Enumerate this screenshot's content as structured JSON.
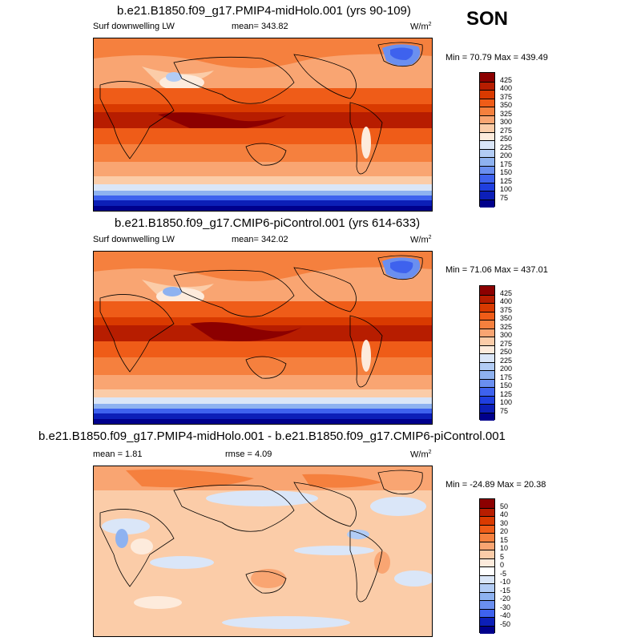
{
  "season": "SON",
  "panels": [
    {
      "title": "b.e21.B1850.f09_g17.PMIP4-midHolo.001 (yrs 90-109)",
      "left_label": "Surf downwelling LW",
      "center_label": "mean= 343.82",
      "units": "W/m",
      "units_sup": "2",
      "minmax": "Min =  70.79 Max = 439.49",
      "colorbar": {
        "labels": [
          "425",
          "400",
          "375",
          "350",
          "325",
          "300",
          "275",
          "250",
          "225",
          "200",
          "175",
          "150",
          "125",
          "100",
          "75"
        ],
        "colors": [
          "#8c0000",
          "#b71d00",
          "#d93a00",
          "#ef5c18",
          "#f5803e",
          "#f9a572",
          "#fbcca8",
          "#fdebdc",
          "#dae6f8",
          "#b2ccf5",
          "#8eb2f0",
          "#6a8ff0",
          "#3e62ee",
          "#1f3fe0",
          "#0c1fb8",
          "#00008c"
        ]
      }
    },
    {
      "title": "b.e21.B1850.f09_g17.CMIP6-piControl.001 (yrs 614-633)",
      "left_label": "Surf downwelling LW",
      "center_label": "mean= 342.02",
      "units": "W/m",
      "units_sup": "2",
      "minmax": "Min =  71.06 Max = 437.01",
      "colorbar": {
        "labels": [
          "425",
          "400",
          "375",
          "350",
          "325",
          "300",
          "275",
          "250",
          "225",
          "200",
          "175",
          "150",
          "125",
          "100",
          "75"
        ],
        "colors": [
          "#8c0000",
          "#b71d00",
          "#d93a00",
          "#ef5c18",
          "#f5803e",
          "#f9a572",
          "#fbcca8",
          "#fdebdc",
          "#dae6f8",
          "#b2ccf5",
          "#8eb2f0",
          "#6a8ff0",
          "#3e62ee",
          "#1f3fe0",
          "#0c1fb8",
          "#00008c"
        ]
      }
    },
    {
      "title": "b.e21.B1850.f09_g17.PMIP4-midHolo.001 - b.e21.B1850.f09_g17.CMIP6-piControl.001",
      "left_label": "mean =   1.81",
      "center_label": "rmse =   4.09",
      "units": "W/m",
      "units_sup": "2",
      "minmax": "Min = -24.89 Max =  20.38",
      "colorbar": {
        "labels": [
          "50",
          "40",
          "30",
          "20",
          "15",
          "10",
          "5",
          "0",
          "-5",
          "-10",
          "-15",
          "-20",
          "-30",
          "-40",
          "-50"
        ],
        "colors": [
          "#8c0000",
          "#b71d00",
          "#d93a00",
          "#ef5c18",
          "#f5803e",
          "#f9a572",
          "#fbcca8",
          "#fdebdc",
          "#ffffff",
          "#dae6f8",
          "#b2ccf5",
          "#8eb2f0",
          "#6a8ff0",
          "#3e62ee",
          "#0c1fb8",
          "#00008c"
        ]
      }
    }
  ]
}
